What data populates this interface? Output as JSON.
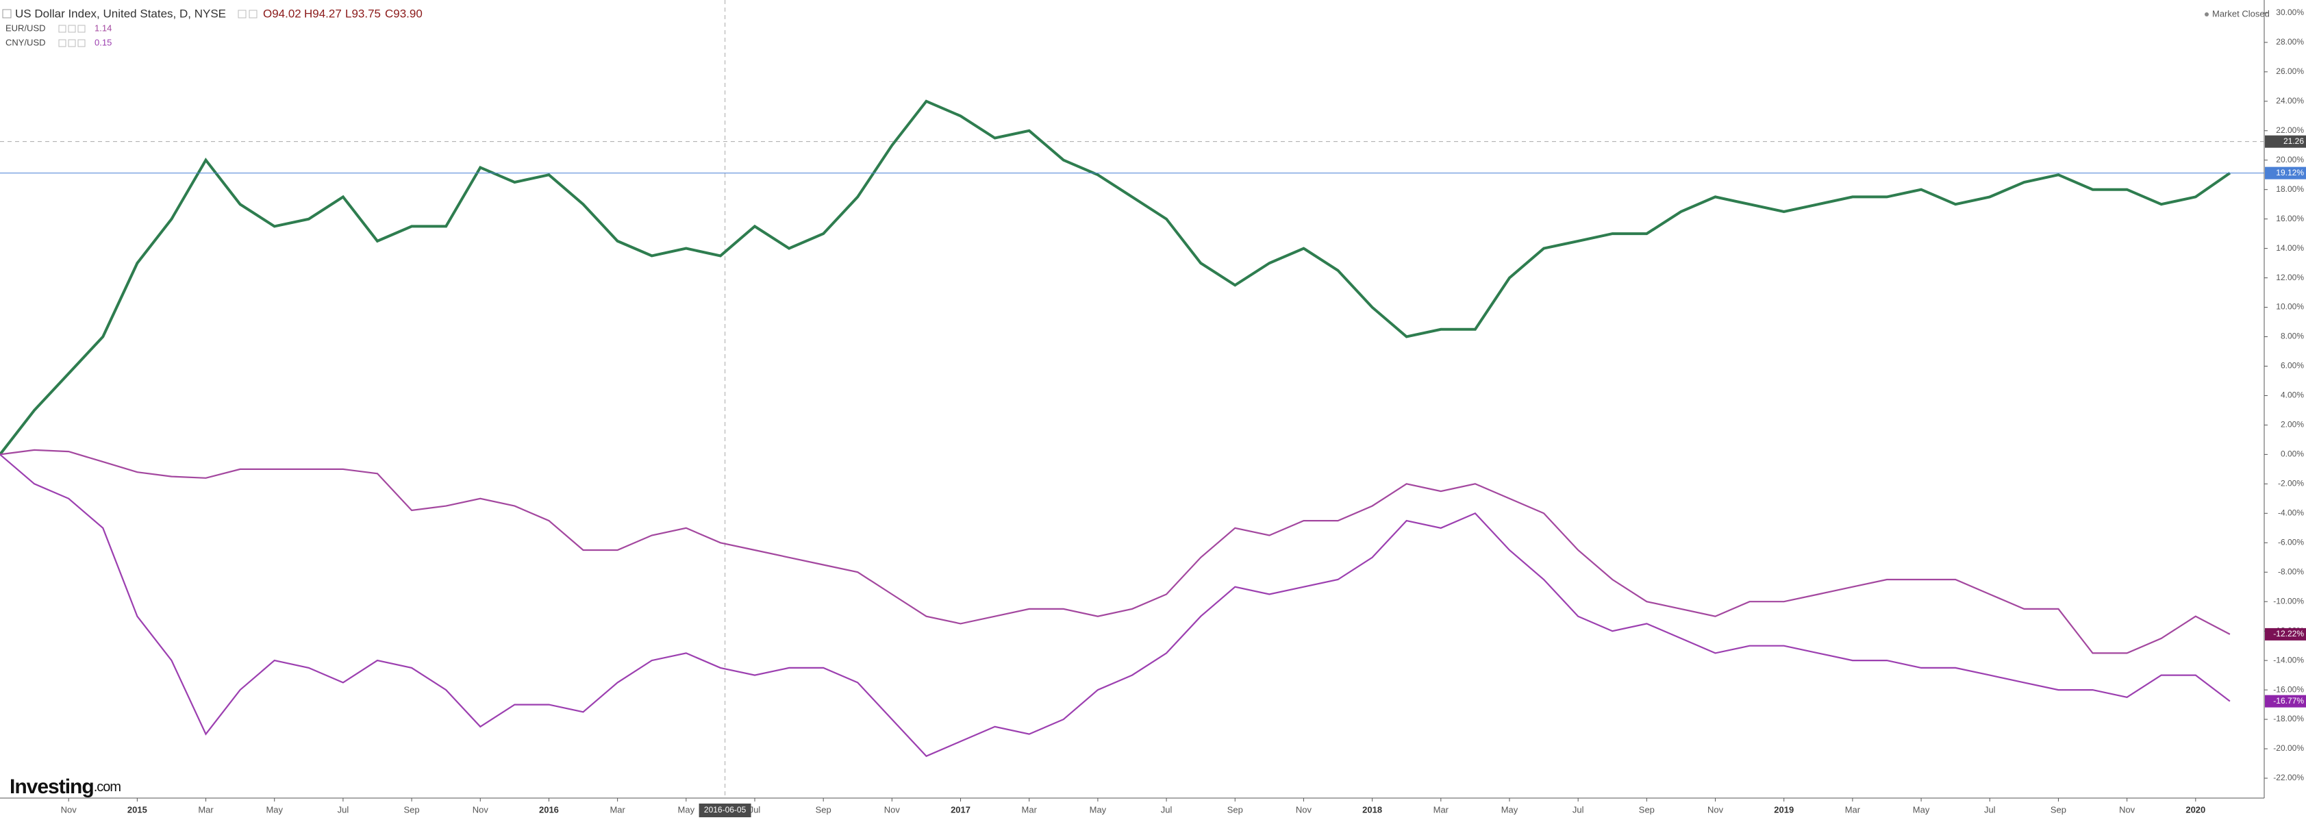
{
  "header": {
    "title": "US Dollar Index, United States, D, NYSE",
    "ohlc": [
      "O94.02",
      "H94.27",
      "L93.75",
      "C93.90"
    ],
    "status": "Market Closed",
    "logo": "Investing",
    "logo_suffix": ".com"
  },
  "chart_data": {
    "type": "line",
    "x": [
      "2014-09",
      "2014-10",
      "2014-11",
      "2014-12",
      "2015-01",
      "2015-02",
      "2015-03",
      "2015-04",
      "2015-05",
      "2015-06",
      "2015-07",
      "2015-08",
      "2015-09",
      "2015-10",
      "2015-11",
      "2015-12",
      "2016-01",
      "2016-02",
      "2016-03",
      "2016-04",
      "2016-05",
      "2016-06",
      "2016-07",
      "2016-08",
      "2016-09",
      "2016-10",
      "2016-11",
      "2016-12",
      "2017-01",
      "2017-02",
      "2017-03",
      "2017-04",
      "2017-05",
      "2017-06",
      "2017-07",
      "2017-08",
      "2017-09",
      "2017-10",
      "2017-11",
      "2017-12",
      "2018-01",
      "2018-02",
      "2018-03",
      "2018-04",
      "2018-05",
      "2018-06",
      "2018-07",
      "2018-08",
      "2018-09",
      "2018-10",
      "2018-11",
      "2018-12",
      "2019-01",
      "2019-02",
      "2019-03",
      "2019-04",
      "2019-05",
      "2019-06",
      "2019-07",
      "2019-08",
      "2019-09",
      "2019-10",
      "2019-11",
      "2019-12",
      "2020-01",
      "2020-02"
    ],
    "series": [
      {
        "name": "US Dollar Index",
        "color": "#2e7d4f",
        "values": [
          0,
          3,
          5.5,
          8,
          13,
          16,
          20,
          17,
          15.5,
          16,
          17.5,
          14.5,
          15.5,
          15.5,
          19.5,
          18.5,
          19,
          17,
          14.5,
          13.5,
          14,
          13.5,
          15.5,
          14,
          15,
          17.5,
          21,
          24,
          23,
          21.5,
          22,
          20,
          19,
          17.5,
          16,
          13,
          11.5,
          13,
          14,
          12.5,
          10,
          8,
          8.5,
          8.5,
          12,
          14,
          14.5,
          15,
          15,
          16.5,
          17.5,
          17,
          16.5,
          17,
          17.5,
          17.5,
          18,
          17,
          17.5,
          18.5,
          19,
          18,
          18,
          17,
          17.5,
          19.12
        ],
        "last": {
          "value": 19.12,
          "label": "19.12%"
        },
        "badge_color": "#4a80d6"
      },
      {
        "name": "EUR/USD",
        "legend_value": "1.14",
        "color": "#a3479f",
        "values": [
          0,
          0.3,
          0.2,
          -0.5,
          -1.2,
          -1.5,
          -1.6,
          -1,
          -1,
          -1,
          -1,
          -1.3,
          -3.8,
          -3.5,
          -3,
          -3.5,
          -4.5,
          -6.5,
          -6.5,
          -5.5,
          -5,
          -6,
          -6.5,
          -7,
          -7.5,
          -8,
          -9.5,
          -11,
          -11.5,
          -11,
          -10.5,
          -10.5,
          -11,
          -10.5,
          -9.5,
          -7,
          -5,
          -5.5,
          -4.5,
          -4.5,
          -3.5,
          -2,
          -2.5,
          -2,
          -3,
          -4,
          -6.5,
          -8.5,
          -10,
          -10.5,
          -11,
          -10,
          -10,
          -9.5,
          -9,
          -8.5,
          -8.5,
          -8.5,
          -9.5,
          -10.5,
          -10.5,
          -13.5,
          -13.5,
          -12.5,
          -11,
          -12.22
        ],
        "last": {
          "value": -12.22,
          "label": "-12.22%"
        },
        "badge_color": "#7b1155"
      },
      {
        "name": "CNY/USD",
        "legend_value": "0.15",
        "color": "#9c3fb0",
        "values": [
          0,
          -2,
          -3,
          -5,
          -11,
          -14,
          -19,
          -16,
          -14,
          -14.5,
          -15.5,
          -14,
          -14.5,
          -16,
          -18.5,
          -17,
          -17,
          -17.5,
          -15.5,
          -14,
          -13.5,
          -14.5,
          -15,
          -14.5,
          -14.5,
          -15.5,
          -18,
          -20.5,
          -19.5,
          -18.5,
          -19,
          -18,
          -16,
          -15,
          -13.5,
          -11,
          -9,
          -9.5,
          -9,
          -8.5,
          -7,
          -4.5,
          -5,
          -4,
          -6.5,
          -8.5,
          -11,
          -12,
          -11.5,
          -12.5,
          -13.5,
          -13,
          -13,
          -13.5,
          -14,
          -14,
          -14.5,
          -14.5,
          -15,
          -15.5,
          -16,
          -16,
          -16.5,
          -15,
          -15,
          -16.77
        ],
        "last": {
          "value": -16.77,
          "label": "-16.77%"
        },
        "badge_color": "#8e24aa"
      }
    ],
    "xlim": [
      "2014-09",
      "2020-03"
    ],
    "xticks": [
      {
        "value": "2014-11",
        "label": "Nov"
      },
      {
        "value": "2015-01",
        "label": "2015"
      },
      {
        "value": "2015-03",
        "label": "Mar"
      },
      {
        "value": "2015-05",
        "label": "May"
      },
      {
        "value": "2015-07",
        "label": "Jul"
      },
      {
        "value": "2015-09",
        "label": "Sep"
      },
      {
        "value": "2015-11",
        "label": "Nov"
      },
      {
        "value": "2016-01",
        "label": "2016"
      },
      {
        "value": "2016-03",
        "label": "Mar"
      },
      {
        "value": "2016-05",
        "label": "May"
      },
      {
        "value": "2016-07",
        "label": "Jul"
      },
      {
        "value": "2016-09",
        "label": "Sep"
      },
      {
        "value": "2016-11",
        "label": "Nov"
      },
      {
        "value": "2017-01",
        "label": "2017"
      },
      {
        "value": "2017-03",
        "label": "Mar"
      },
      {
        "value": "2017-05",
        "label": "May"
      },
      {
        "value": "2017-07",
        "label": "Jul"
      },
      {
        "value": "2017-09",
        "label": "Sep"
      },
      {
        "value": "2017-11",
        "label": "Nov"
      },
      {
        "value": "2018-01",
        "label": "2018"
      },
      {
        "value": "2018-03",
        "label": "Mar"
      },
      {
        "value": "2018-05",
        "label": "May"
      },
      {
        "value": "2018-07",
        "label": "Jul"
      },
      {
        "value": "2018-09",
        "label": "Sep"
      },
      {
        "value": "2018-11",
        "label": "Nov"
      },
      {
        "value": "2019-01",
        "label": "2019"
      },
      {
        "value": "2019-03",
        "label": "Mar"
      },
      {
        "value": "2019-05",
        "label": "May"
      },
      {
        "value": "2019-07",
        "label": "Jul"
      },
      {
        "value": "2019-09",
        "label": "Sep"
      },
      {
        "value": "2019-11",
        "label": "Nov"
      },
      {
        "value": "2020-01",
        "label": "2020"
      }
    ],
    "ylim": [
      -23.35,
      30.88
    ],
    "yticks": [
      {
        "value": 30,
        "label": "30.00%"
      },
      {
        "value": 28,
        "label": "28.00%"
      },
      {
        "value": 26,
        "label": "26.00%"
      },
      {
        "value": 24,
        "label": "24.00%"
      },
      {
        "value": 22,
        "label": "22.00%"
      },
      {
        "value": 20,
        "label": "20.00%"
      },
      {
        "value": 18,
        "label": "18.00%"
      },
      {
        "value": 16,
        "label": "16.00%"
      },
      {
        "value": 14,
        "label": "14.00%"
      },
      {
        "value": 12,
        "label": "12.00%"
      },
      {
        "value": 10,
        "label": "10.00%"
      },
      {
        "value": 8,
        "label": "8.00%"
      },
      {
        "value": 6,
        "label": "6.00%"
      },
      {
        "value": 4,
        "label": "4.00%"
      },
      {
        "value": 2,
        "label": "2.00%"
      },
      {
        "value": 0,
        "label": "0.00%"
      },
      {
        "value": -2,
        "label": "-2.00%"
      },
      {
        "value": -4,
        "label": "-4.00%"
      },
      {
        "value": -6,
        "label": "-6.00%"
      },
      {
        "value": -8,
        "label": "-8.00%"
      },
      {
        "value": -10,
        "label": "-10.00%"
      },
      {
        "value": -12,
        "label": "-12.00%"
      },
      {
        "value": -14,
        "label": "-14.00%"
      },
      {
        "value": -16,
        "label": "-16.00%"
      },
      {
        "value": -18,
        "label": "-18.00%"
      },
      {
        "value": -20,
        "label": "-20.00%"
      },
      {
        "value": -22,
        "label": "-22.00%"
      }
    ],
    "crosshair": {
      "x": "2016-06-05",
      "y": {
        "value": 21.26,
        "label": "21.26"
      }
    },
    "grid": false
  }
}
